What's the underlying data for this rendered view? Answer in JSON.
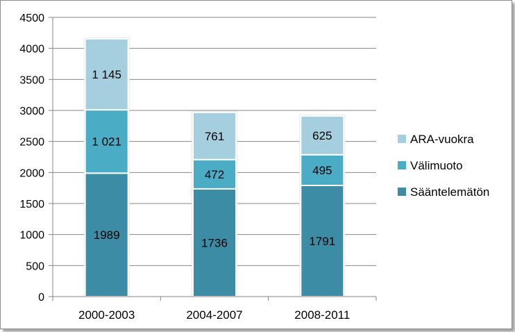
{
  "chart_data": {
    "type": "bar",
    "stacked": true,
    "categories": [
      "2000-2003",
      "2004-2007",
      "2008-2011"
    ],
    "series": [
      {
        "name": "Sääntelemätön",
        "values": [
          1989,
          1736,
          1791
        ],
        "labels": [
          "1989",
          "1736",
          "1791"
        ],
        "color": "#3b8ca4"
      },
      {
        "name": "Välimuoto",
        "values": [
          1021,
          472,
          495
        ],
        "labels": [
          "1 021",
          "472",
          "495"
        ],
        "color": "#4bacc6"
      },
      {
        "name": "ARA-vuokra",
        "values": [
          1145,
          761,
          625
        ],
        "labels": [
          "1 145",
          "761",
          "625"
        ],
        "color": "#a5cfdf"
      }
    ],
    "y_ticks": [
      "0",
      "500",
      "1000",
      "1500",
      "2000",
      "2500",
      "3000",
      "3500",
      "4000",
      "4500"
    ],
    "ylim": [
      0,
      4500
    ],
    "grid": true,
    "legend_position": "right",
    "legend_order": [
      "ARA-vuokra",
      "Välimuoto",
      "Sääntelemätön"
    ],
    "title": "",
    "xlabel": "",
    "ylabel": ""
  }
}
